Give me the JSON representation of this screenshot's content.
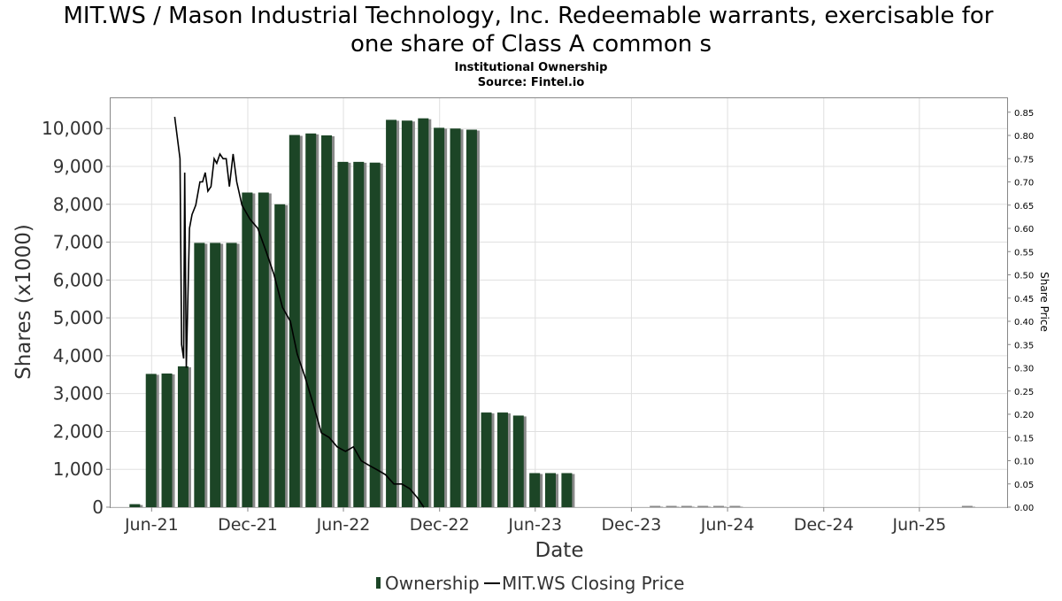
{
  "chart_data": {
    "type": "bar",
    "title_line1": "MIT.WS / Mason Industrial Technology, Inc. Redeemable warrants, exercisable for",
    "title_line2": "one share of Class A common s",
    "subtitle": "Institutional Ownership",
    "source": "Source: Fintel.io",
    "xlabel": "Date",
    "ylabel": "Shares (x1000)",
    "ylabel_right": "Share Price",
    "ylim": [
      0,
      10800
    ],
    "ylim_right": [
      0,
      0.88
    ],
    "xlim": [
      "2021-03-15",
      "2025-11-15"
    ],
    "grid": true,
    "legend_position": "bottom-center",
    "colors": {
      "bar": "#1c4526",
      "bar_shadow": "#8a8a8a",
      "line": "#000000",
      "grid": "#e0e0e0",
      "axis": "#888888"
    },
    "yticks_left": [
      {
        "value": 0,
        "label": "0"
      },
      {
        "value": 1000,
        "label": "1,000"
      },
      {
        "value": 2000,
        "label": "2,000"
      },
      {
        "value": 3000,
        "label": "3,000"
      },
      {
        "value": 4000,
        "label": "4,000"
      },
      {
        "value": 5000,
        "label": "5,000"
      },
      {
        "value": 6000,
        "label": "6,000"
      },
      {
        "value": 7000,
        "label": "7,000"
      },
      {
        "value": 8000,
        "label": "8,000"
      },
      {
        "value": 9000,
        "label": "9,000"
      },
      {
        "value": 10000,
        "label": "10,000"
      }
    ],
    "yticks_right": [
      {
        "value": 0.0,
        "label": "0.00"
      },
      {
        "value": 0.05,
        "label": "0.05"
      },
      {
        "value": 0.1,
        "label": "0.10"
      },
      {
        "value": 0.15,
        "label": "0.15"
      },
      {
        "value": 0.2,
        "label": "0.20"
      },
      {
        "value": 0.25,
        "label": "0.25"
      },
      {
        "value": 0.3,
        "label": "0.30"
      },
      {
        "value": 0.35,
        "label": "0.35"
      },
      {
        "value": 0.4,
        "label": "0.40"
      },
      {
        "value": 0.45,
        "label": "0.45"
      },
      {
        "value": 0.5,
        "label": "0.50"
      },
      {
        "value": 0.55,
        "label": "0.55"
      },
      {
        "value": 0.6,
        "label": "0.60"
      },
      {
        "value": 0.65,
        "label": "0.65"
      },
      {
        "value": 0.7,
        "label": "0.70"
      },
      {
        "value": 0.75,
        "label": "0.75"
      },
      {
        "value": 0.8,
        "label": "0.80"
      },
      {
        "value": 0.85,
        "label": "0.85"
      }
    ],
    "xticks": [
      {
        "date": "2021-06-01",
        "label": "Jun-21"
      },
      {
        "date": "2021-12-01",
        "label": "Dec-21"
      },
      {
        "date": "2022-06-01",
        "label": "Jun-22"
      },
      {
        "date": "2022-12-01",
        "label": "Dec-22"
      },
      {
        "date": "2023-06-01",
        "label": "Jun-23"
      },
      {
        "date": "2023-12-01",
        "label": "Dec-23"
      },
      {
        "date": "2024-06-01",
        "label": "Jun-24"
      },
      {
        "date": "2024-12-01",
        "label": "Dec-24"
      },
      {
        "date": "2025-06-01",
        "label": "Jun-25"
      }
    ],
    "series": [
      {
        "name": "Ownership",
        "kind": "bar",
        "points": [
          {
            "date": "2021-04-30",
            "value": 80
          },
          {
            "date": "2021-05-31",
            "value": 3520
          },
          {
            "date": "2021-06-30",
            "value": 3530
          },
          {
            "date": "2021-07-31",
            "value": 3720
          },
          {
            "date": "2021-08-31",
            "value": 6980
          },
          {
            "date": "2021-09-30",
            "value": 6980
          },
          {
            "date": "2021-10-31",
            "value": 6980
          },
          {
            "date": "2021-11-30",
            "value": 8310
          },
          {
            "date": "2021-12-31",
            "value": 8310
          },
          {
            "date": "2022-01-31",
            "value": 8000
          },
          {
            "date": "2022-02-28",
            "value": 9830
          },
          {
            "date": "2022-03-31",
            "value": 9870
          },
          {
            "date": "2022-04-30",
            "value": 9820
          },
          {
            "date": "2022-05-31",
            "value": 9120
          },
          {
            "date": "2022-06-30",
            "value": 9120
          },
          {
            "date": "2022-07-31",
            "value": 9100
          },
          {
            "date": "2022-08-31",
            "value": 10230
          },
          {
            "date": "2022-09-30",
            "value": 10210
          },
          {
            "date": "2022-10-31",
            "value": 10270
          },
          {
            "date": "2022-11-30",
            "value": 10020
          },
          {
            "date": "2022-12-31",
            "value": 10000
          },
          {
            "date": "2023-01-31",
            "value": 9970
          },
          {
            "date": "2023-02-28",
            "value": 2500
          },
          {
            "date": "2023-03-31",
            "value": 2500
          },
          {
            "date": "2023-04-30",
            "value": 2420
          },
          {
            "date": "2023-05-31",
            "value": 900
          },
          {
            "date": "2023-06-30",
            "value": 900
          },
          {
            "date": "2023-07-31",
            "value": 900
          },
          {
            "date": "2024-01-15",
            "value": 10
          },
          {
            "date": "2024-02-15",
            "value": 10
          },
          {
            "date": "2024-03-15",
            "value": 10
          },
          {
            "date": "2024-04-15",
            "value": 10
          },
          {
            "date": "2024-05-15",
            "value": 10
          },
          {
            "date": "2024-06-15",
            "value": 10
          },
          {
            "date": "2025-08-31",
            "value": 10
          }
        ]
      },
      {
        "name": "MIT.WS Closing Price",
        "kind": "line",
        "points": [
          {
            "date": "2021-07-15",
            "value": 0.84
          },
          {
            "date": "2021-07-25",
            "value": 0.75
          },
          {
            "date": "2021-07-28",
            "value": 0.35
          },
          {
            "date": "2021-08-01",
            "value": 0.32
          },
          {
            "date": "2021-08-03",
            "value": 0.72
          },
          {
            "date": "2021-08-06",
            "value": 0.3
          },
          {
            "date": "2021-08-12",
            "value": 0.6
          },
          {
            "date": "2021-08-17",
            "value": 0.63
          },
          {
            "date": "2021-08-24",
            "value": 0.65
          },
          {
            "date": "2021-09-01",
            "value": 0.7
          },
          {
            "date": "2021-09-06",
            "value": 0.7
          },
          {
            "date": "2021-09-11",
            "value": 0.72
          },
          {
            "date": "2021-09-16",
            "value": 0.68
          },
          {
            "date": "2021-09-22",
            "value": 0.69
          },
          {
            "date": "2021-09-28",
            "value": 0.75
          },
          {
            "date": "2021-10-03",
            "value": 0.74
          },
          {
            "date": "2021-10-09",
            "value": 0.76
          },
          {
            "date": "2021-10-15",
            "value": 0.75
          },
          {
            "date": "2021-10-21",
            "value": 0.75
          },
          {
            "date": "2021-10-27",
            "value": 0.69
          },
          {
            "date": "2021-11-03",
            "value": 0.76
          },
          {
            "date": "2021-11-10",
            "value": 0.7
          },
          {
            "date": "2021-11-20",
            "value": 0.65
          },
          {
            "date": "2021-12-05",
            "value": 0.62
          },
          {
            "date": "2021-12-20",
            "value": 0.6
          },
          {
            "date": "2022-01-05",
            "value": 0.55
          },
          {
            "date": "2022-01-20",
            "value": 0.5
          },
          {
            "date": "2022-02-05",
            "value": 0.43
          },
          {
            "date": "2022-02-20",
            "value": 0.4
          },
          {
            "date": "2022-03-05",
            "value": 0.33
          },
          {
            "date": "2022-03-20",
            "value": 0.28
          },
          {
            "date": "2022-04-05",
            "value": 0.22
          },
          {
            "date": "2022-04-20",
            "value": 0.16
          },
          {
            "date": "2022-05-05",
            "value": 0.15
          },
          {
            "date": "2022-05-20",
            "value": 0.13
          },
          {
            "date": "2022-06-05",
            "value": 0.12
          },
          {
            "date": "2022-06-20",
            "value": 0.13
          },
          {
            "date": "2022-07-05",
            "value": 0.1
          },
          {
            "date": "2022-07-20",
            "value": 0.09
          },
          {
            "date": "2022-08-05",
            "value": 0.08
          },
          {
            "date": "2022-08-20",
            "value": 0.07
          },
          {
            "date": "2022-09-05",
            "value": 0.05
          },
          {
            "date": "2022-09-20",
            "value": 0.05
          },
          {
            "date": "2022-10-05",
            "value": 0.04
          },
          {
            "date": "2022-10-20",
            "value": 0.02
          },
          {
            "date": "2022-11-01",
            "value": 0.0
          }
        ]
      }
    ]
  }
}
